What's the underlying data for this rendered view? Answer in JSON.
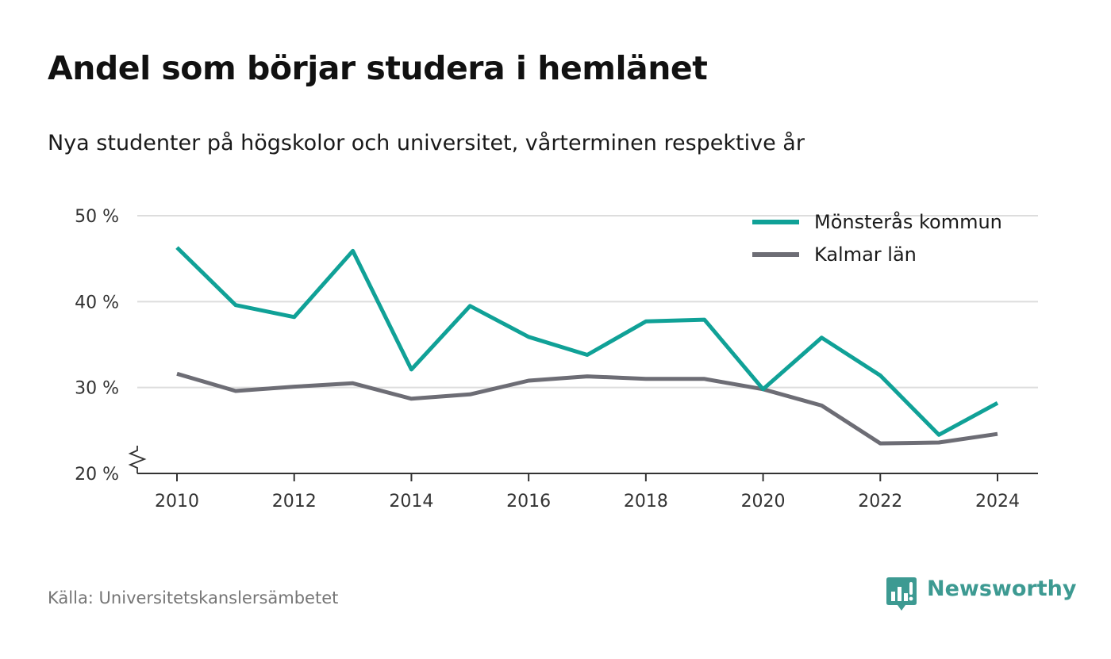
{
  "title": "Andel som börjar studera i hemlänet",
  "subtitle": "Nya studenter på högskolor och universitet, vårterminen respektive år",
  "source": "Källa: Universitetskanslersämbetet",
  "brand": "Newsworthy",
  "colors": {
    "series1": "#10a197",
    "series2": "#6d6d75",
    "grid": "#dddddd",
    "axis": "#333333",
    "brand": "#3d9a92"
  },
  "chart_data": {
    "type": "line",
    "title": "Andel som börjar studera i hemlänet",
    "subtitle": "Nya studenter på högskolor och universitet, vårterminen respektive år",
    "xlabel": "",
    "ylabel": "",
    "ylim": [
      20,
      50
    ],
    "y_axis_break": true,
    "grid": true,
    "legend_position": "top-right",
    "x_ticks": [
      2010,
      2012,
      2014,
      2016,
      2018,
      2020,
      2022,
      2024
    ],
    "y_ticks": [
      {
        "value": 20,
        "label": "20 %"
      },
      {
        "value": 30,
        "label": "30 %"
      },
      {
        "value": 40,
        "label": "40 %"
      },
      {
        "value": 50,
        "label": "50 %"
      }
    ],
    "x": [
      2010,
      2011,
      2012,
      2013,
      2014,
      2015,
      2016,
      2017,
      2018,
      2019,
      2020,
      2021,
      2022,
      2023,
      2024
    ],
    "series": [
      {
        "name": "Mönsterås kommun",
        "color": "#10a197",
        "values": [
          46.3,
          39.6,
          38.2,
          45.9,
          32.1,
          39.5,
          35.9,
          33.8,
          37.7,
          37.9,
          29.8,
          35.8,
          31.4,
          24.5,
          28.2
        ]
      },
      {
        "name": "Kalmar län",
        "color": "#6d6d75",
        "values": [
          31.6,
          29.6,
          30.1,
          30.5,
          28.7,
          29.2,
          30.8,
          31.3,
          31.0,
          31.0,
          29.8,
          27.9,
          23.5,
          23.6,
          24.6
        ]
      }
    ]
  }
}
